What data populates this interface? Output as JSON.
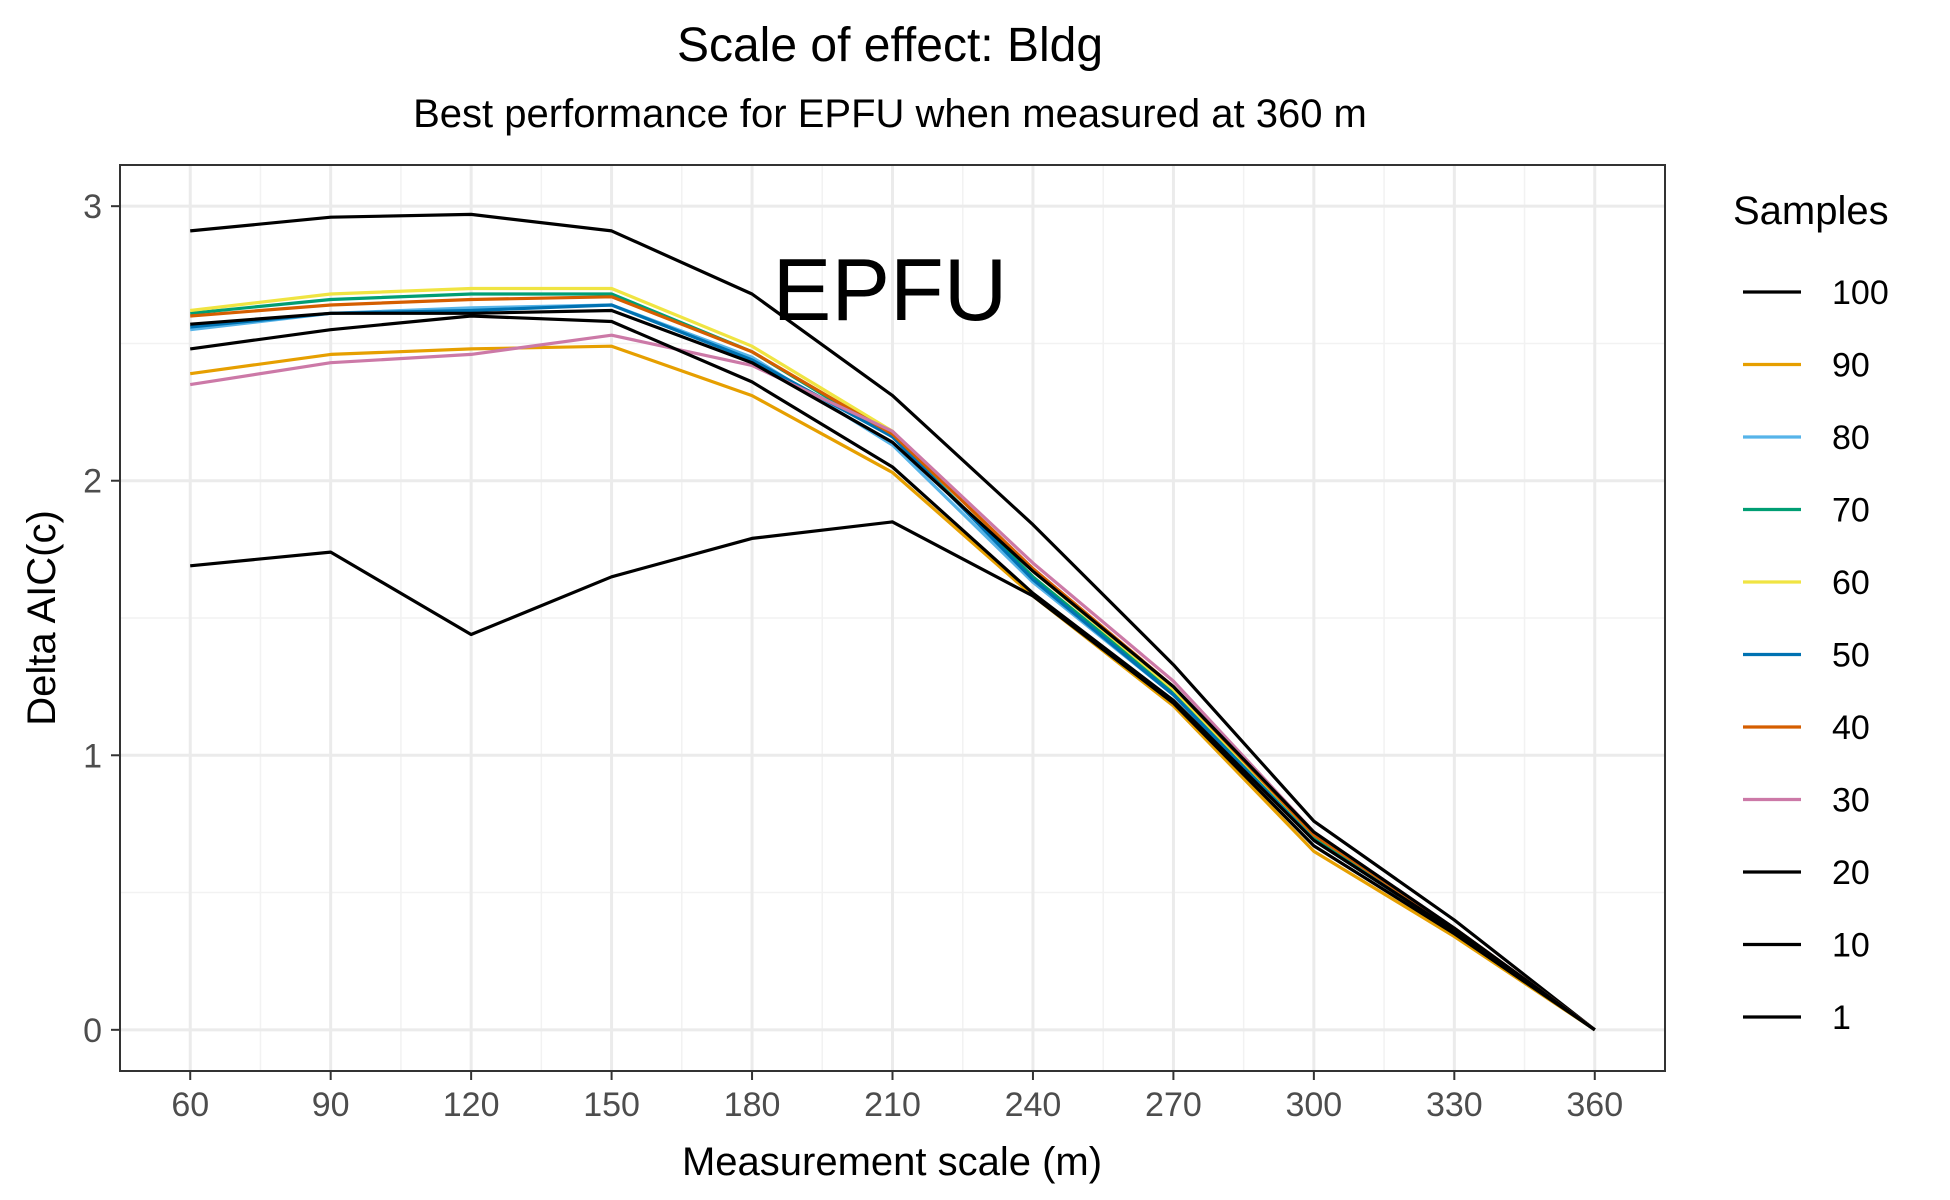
{
  "chart_data": {
    "type": "line",
    "title": "Scale of effect: Bldg",
    "subtitle": "Best performance for EPFU when measured at 360 m",
    "annotation": "EPFU",
    "xlabel": "Measurement scale (m)",
    "ylabel": "Delta AIC(c)",
    "xlim": [
      45,
      375
    ],
    "ylim": [
      -0.15,
      3.15
    ],
    "xticks": [
      60,
      90,
      120,
      150,
      180,
      210,
      240,
      270,
      300,
      330,
      360
    ],
    "yticks": [
      0,
      1,
      2,
      3
    ],
    "grid": true,
    "legend_title": "Samples",
    "legend_position": "right",
    "x": [
      60,
      90,
      120,
      150,
      180,
      210,
      240,
      270,
      300,
      330,
      360
    ],
    "series": [
      {
        "name": "100",
        "color": "#000000",
        "values": [
          2.91,
          2.96,
          2.97,
          2.91,
          2.68,
          2.31,
          1.84,
          1.33,
          0.76,
          0.4,
          0.0
        ]
      },
      {
        "name": "90",
        "color": "#E69F00",
        "values": [
          2.39,
          2.46,
          2.48,
          2.49,
          2.31,
          2.03,
          1.58,
          1.18,
          0.65,
          0.34,
          0.0
        ]
      },
      {
        "name": "80",
        "color": "#56B4E9",
        "values": [
          2.55,
          2.61,
          2.63,
          2.64,
          2.45,
          2.13,
          1.63,
          1.22,
          0.69,
          0.36,
          0.0
        ]
      },
      {
        "name": "70",
        "color": "#009E73",
        "values": [
          2.61,
          2.66,
          2.68,
          2.68,
          2.47,
          2.16,
          1.65,
          1.23,
          0.7,
          0.36,
          0.0
        ]
      },
      {
        "name": "60",
        "color": "#F0E442",
        "values": [
          2.62,
          2.68,
          2.7,
          2.7,
          2.49,
          2.18,
          1.67,
          1.24,
          0.71,
          0.37,
          0.0
        ]
      },
      {
        "name": "50",
        "color": "#0072B2",
        "values": [
          2.56,
          2.61,
          2.62,
          2.64,
          2.44,
          2.16,
          1.64,
          1.22,
          0.69,
          0.36,
          0.0
        ]
      },
      {
        "name": "40",
        "color": "#D55E00",
        "values": [
          2.6,
          2.64,
          2.66,
          2.67,
          2.47,
          2.17,
          1.68,
          1.25,
          0.71,
          0.37,
          0.0
        ]
      },
      {
        "name": "30",
        "color": "#CC79A7",
        "values": [
          2.35,
          2.43,
          2.46,
          2.53,
          2.42,
          2.18,
          1.7,
          1.27,
          0.72,
          0.37,
          0.0
        ]
      },
      {
        "name": "20",
        "color": "#000000",
        "values": [
          2.57,
          2.61,
          2.61,
          2.62,
          2.43,
          2.14,
          1.67,
          1.25,
          0.72,
          0.37,
          0.0
        ]
      },
      {
        "name": "10",
        "color": "#000000",
        "values": [
          2.48,
          2.55,
          2.6,
          2.58,
          2.36,
          2.05,
          1.59,
          1.2,
          0.69,
          0.36,
          0.0
        ]
      },
      {
        "name": "1",
        "color": "#000000",
        "values": [
          1.69,
          1.74,
          1.44,
          1.65,
          1.79,
          1.85,
          1.58,
          1.19,
          0.67,
          0.35,
          0.0
        ]
      }
    ]
  }
}
